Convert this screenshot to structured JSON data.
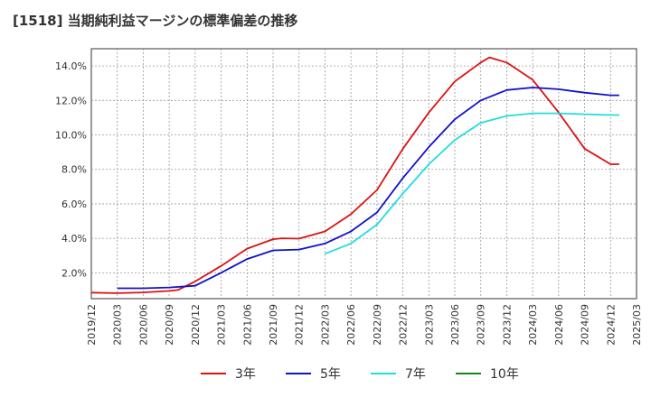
{
  "chart_data": {
    "type": "line",
    "title": "[1518]  当期純利益マージンの標準偏差の推移",
    "xlabel": "",
    "ylabel": "",
    "ylim": [
      0.5,
      15.0
    ],
    "y_ticks": [
      2.0,
      4.0,
      6.0,
      8.0,
      10.0,
      12.0,
      14.0
    ],
    "y_tick_labels": [
      "2.0%",
      "4.0%",
      "6.0%",
      "8.0%",
      "10.0%",
      "12.0%",
      "14.0%"
    ],
    "x_tick_labels": [
      "2019/12",
      "2020/03",
      "2020/06",
      "2020/09",
      "2020/12",
      "2021/03",
      "2021/06",
      "2021/09",
      "2021/12",
      "2022/03",
      "2022/06",
      "2022/09",
      "2022/12",
      "2023/03",
      "2023/06",
      "2023/09",
      "2023/12",
      "2024/03",
      "2024/06",
      "2024/09",
      "2024/12",
      "2025/03"
    ],
    "grid": true,
    "legend_position": "bottom",
    "series": [
      {
        "name": "3年",
        "color": "#dd1111",
        "points": [
          [
            "2019/12",
            0.85
          ],
          [
            "2020/03",
            0.82
          ],
          [
            "2020/06",
            0.86
          ],
          [
            "2020/09",
            0.95
          ],
          [
            "2020/10",
            1.0
          ],
          [
            "2020/12",
            1.5
          ],
          [
            "2021/03",
            2.4
          ],
          [
            "2021/06",
            3.4
          ],
          [
            "2021/09",
            3.95
          ],
          [
            "2021/10",
            4.0
          ],
          [
            "2021/12",
            3.98
          ],
          [
            "2022/03",
            4.4
          ],
          [
            "2022/06",
            5.4
          ],
          [
            "2022/09",
            6.8
          ],
          [
            "2022/12",
            9.2
          ],
          [
            "2023/03",
            11.3
          ],
          [
            "2023/06",
            13.1
          ],
          [
            "2023/09",
            14.2
          ],
          [
            "2023/10",
            14.5
          ],
          [
            "2023/12",
            14.2
          ],
          [
            "2024/03",
            13.2
          ],
          [
            "2024/06",
            11.3
          ],
          [
            "2024/09",
            9.2
          ],
          [
            "2024/12",
            8.3
          ],
          [
            "2025/01",
            8.3
          ]
        ]
      },
      {
        "name": "5年",
        "color": "#1111cc",
        "points": [
          [
            "2020/03",
            1.1
          ],
          [
            "2020/06",
            1.1
          ],
          [
            "2020/09",
            1.15
          ],
          [
            "2020/12",
            1.25
          ],
          [
            "2021/03",
            2.0
          ],
          [
            "2021/06",
            2.8
          ],
          [
            "2021/09",
            3.3
          ],
          [
            "2021/12",
            3.35
          ],
          [
            "2022/03",
            3.7
          ],
          [
            "2022/06",
            4.4
          ],
          [
            "2022/09",
            5.5
          ],
          [
            "2022/12",
            7.5
          ],
          [
            "2023/03",
            9.3
          ],
          [
            "2023/06",
            10.9
          ],
          [
            "2023/09",
            12.0
          ],
          [
            "2023/12",
            12.6
          ],
          [
            "2024/03",
            12.75
          ],
          [
            "2024/06",
            12.65
          ],
          [
            "2024/09",
            12.45
          ],
          [
            "2024/12",
            12.3
          ],
          [
            "2025/01",
            12.3
          ]
        ]
      },
      {
        "name": "7年",
        "color": "#22dddd",
        "points": [
          [
            "2022/03",
            3.1
          ],
          [
            "2022/06",
            3.7
          ],
          [
            "2022/09",
            4.8
          ],
          [
            "2022/12",
            6.6
          ],
          [
            "2023/03",
            8.3
          ],
          [
            "2023/06",
            9.7
          ],
          [
            "2023/09",
            10.7
          ],
          [
            "2023/12",
            11.1
          ],
          [
            "2024/03",
            11.25
          ],
          [
            "2024/06",
            11.25
          ],
          [
            "2024/09",
            11.2
          ],
          [
            "2024/12",
            11.15
          ],
          [
            "2025/01",
            11.15
          ]
        ]
      },
      {
        "name": "10年",
        "color": "#118811",
        "points": []
      }
    ]
  }
}
